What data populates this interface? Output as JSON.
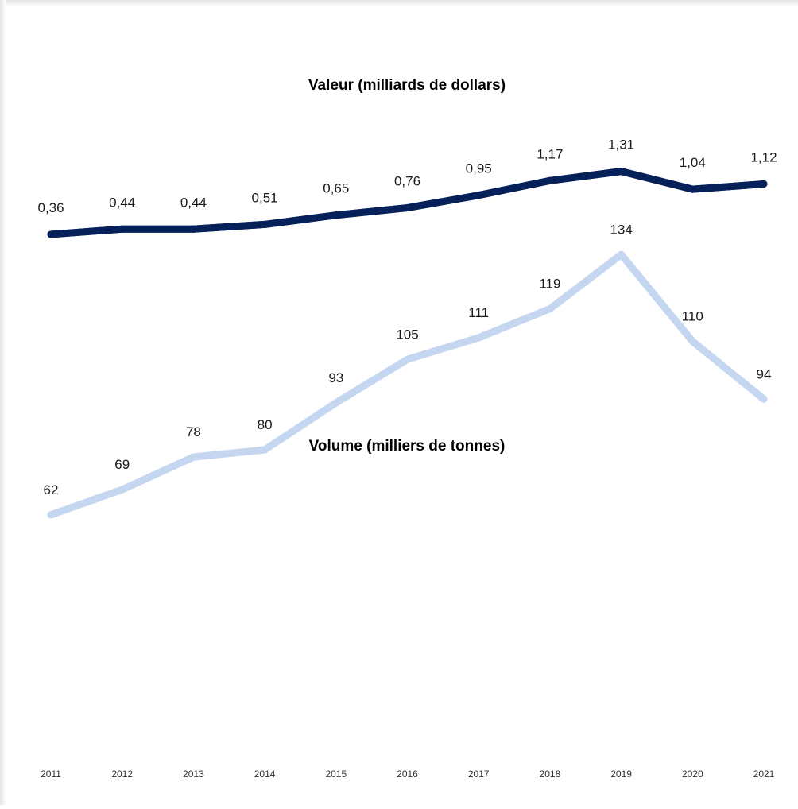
{
  "chart_data": [
    {
      "type": "line",
      "title": "Valeur (milliards de dollars)",
      "categories": [
        "2011",
        "2012",
        "2013",
        "2014",
        "2015",
        "2016",
        "2017",
        "2018",
        "2019",
        "2020",
        "2021"
      ],
      "values": [
        0.36,
        0.44,
        0.44,
        0.51,
        0.65,
        0.76,
        0.95,
        1.17,
        1.31,
        1.04,
        1.12
      ],
      "value_labels": [
        "0,36",
        "0,44",
        "0,44",
        "0,51",
        "0,65",
        "0,76",
        "0,95",
        "1,17",
        "1,31",
        "1,04",
        "1,12"
      ],
      "color": "#06215a",
      "xlabel": "",
      "ylabel": "",
      "grid": false
    },
    {
      "type": "line",
      "title": "Volume (milliers de tonnes)",
      "categories": [
        "2011",
        "2012",
        "2013",
        "2014",
        "2015",
        "2016",
        "2017",
        "2018",
        "2019",
        "2020",
        "2021"
      ],
      "values": [
        62,
        69,
        78,
        80,
        93,
        105,
        111,
        119,
        134,
        110,
        94
      ],
      "value_labels": [
        "62",
        "69",
        "78",
        "80",
        "93",
        "105",
        "111",
        "119",
        "134",
        "110",
        "94"
      ],
      "color": "#c5d7f0",
      "xlabel": "",
      "ylabel": "",
      "grid": false
    }
  ]
}
